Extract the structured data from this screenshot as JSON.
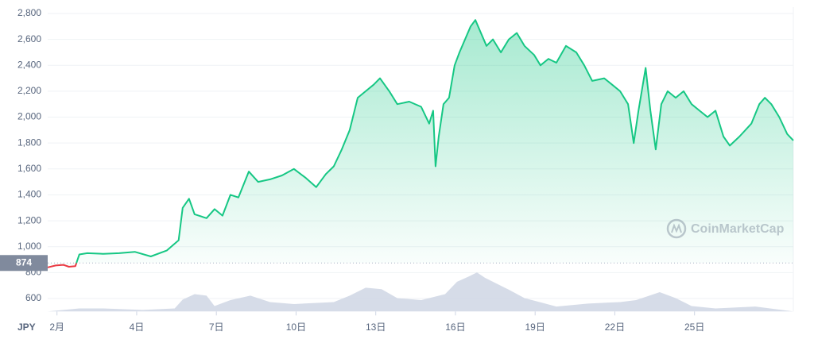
{
  "chart_data": {
    "type": "line",
    "currency": "JPY",
    "watermark": "CoinMarketCap",
    "baseline": 874,
    "up_color": "#16c784",
    "down_color": "#ea3943",
    "x": [
      0.65,
      0.95,
      1.24,
      1.45,
      1.69,
      1.84,
      2.14,
      2.74,
      3.34,
      3.93,
      4.53,
      5.13,
      5.58,
      5.73,
      5.97,
      6.18,
      6.63,
      6.93,
      7.23,
      7.53,
      7.83,
      8.22,
      8.57,
      9.02,
      9.47,
      9.92,
      10.37,
      10.76,
      11.12,
      11.42,
      11.72,
      12.02,
      12.32,
      12.62,
      12.92,
      13.16,
      13.51,
      13.81,
      14.26,
      14.71,
      15.01,
      15.16,
      15.25,
      15.37,
      15.55,
      15.76,
      15.97,
      16.15,
      16.36,
      16.57,
      16.75,
      16.96,
      17.17,
      17.41,
      17.71,
      18.01,
      18.31,
      18.6,
      18.96,
      19.2,
      19.5,
      19.8,
      20.16,
      20.55,
      20.85,
      21.15,
      21.6,
      21.9,
      22.2,
      22.5,
      22.71,
      22.89,
      23.16,
      23.34,
      23.54,
      23.75,
      23.99,
      24.29,
      24.59,
      24.89,
      25.19,
      25.49,
      25.79,
      26.09,
      26.33,
      26.69,
      27.14,
      27.44,
      27.65,
      27.89,
      28.19,
      28.49,
      28.72
    ],
    "values": [
      840,
      855,
      860,
      845,
      850,
      940,
      950,
      945,
      950,
      960,
      925,
      970,
      1050,
      1300,
      1370,
      1250,
      1220,
      1290,
      1240,
      1400,
      1380,
      1580,
      1500,
      1520,
      1550,
      1600,
      1530,
      1460,
      1560,
      1620,
      1750,
      1900,
      2150,
      2200,
      2250,
      2300,
      2200,
      2100,
      2120,
      2080,
      1950,
      2050,
      1620,
      1850,
      2100,
      2150,
      2400,
      2500,
      2600,
      2700,
      2750,
      2650,
      2550,
      2600,
      2500,
      2600,
      2650,
      2550,
      2480,
      2400,
      2450,
      2420,
      2550,
      2500,
      2400,
      2280,
      2300,
      2250,
      2200,
      2100,
      1800,
      2050,
      2380,
      2050,
      1750,
      2100,
      2200,
      2150,
      2200,
      2100,
      2050,
      2000,
      2050,
      1850,
      1780,
      1850,
      1950,
      2100,
      2150,
      2100,
      2000,
      1870,
      1820
    ],
    "xlim": [
      0.65,
      28.72
    ],
    "ylim": [
      500,
      2800
    ],
    "yticks": [
      600,
      800,
      {
        "value": 1000,
        "label": "1,000"
      },
      {
        "value": 1200,
        "label": "1,200"
      },
      {
        "value": 1400,
        "label": "1,400"
      },
      {
        "value": 1600,
        "label": "1,600"
      },
      {
        "value": 1800,
        "label": "1,800"
      },
      {
        "value": 2000,
        "label": "2,000"
      },
      {
        "value": 2200,
        "label": "2,200"
      },
      {
        "value": 2400,
        "label": "2,400"
      },
      {
        "value": 2600,
        "label": "2,600"
      },
      {
        "value": 2800,
        "label": "2,800"
      }
    ],
    "xticks": [
      {
        "value": 1,
        "label": "2月"
      },
      {
        "value": 4,
        "label": "4日"
      },
      {
        "value": 7,
        "label": "7日"
      },
      {
        "value": 10,
        "label": "10日"
      },
      {
        "value": 13,
        "label": "13日"
      },
      {
        "value": 16,
        "label": "16日"
      },
      {
        "value": 19,
        "label": "19日"
      },
      {
        "value": 22,
        "label": "22日"
      },
      {
        "value": 25,
        "label": "25日"
      }
    ],
    "grid": true,
    "volume": {
      "color": "#cfd6e4",
      "vlim": [
        0,
        100
      ],
      "x": [
        0.65,
        1.84,
        2.74,
        4.23,
        5.43,
        5.73,
        6.18,
        6.63,
        6.93,
        7.53,
        8.28,
        9.02,
        9.92,
        11.42,
        12.02,
        12.62,
        13.22,
        13.81,
        14.71,
        15.61,
        16.06,
        16.51,
        16.81,
        17.11,
        18.01,
        18.6,
        19.8,
        20.99,
        22.2,
        22.8,
        23.69,
        24.29,
        24.89,
        25.79,
        27.29,
        28.72
      ],
      "values": [
        0,
        6,
        6,
        3,
        6,
        24,
        35,
        32,
        11,
        23,
        32,
        19,
        15,
        19,
        32,
        48,
        45,
        27,
        23,
        35,
        60,
        71,
        79,
        68,
        44,
        27,
        10,
        16,
        19,
        23,
        39,
        27,
        11,
        6,
        10,
        0
      ]
    }
  }
}
